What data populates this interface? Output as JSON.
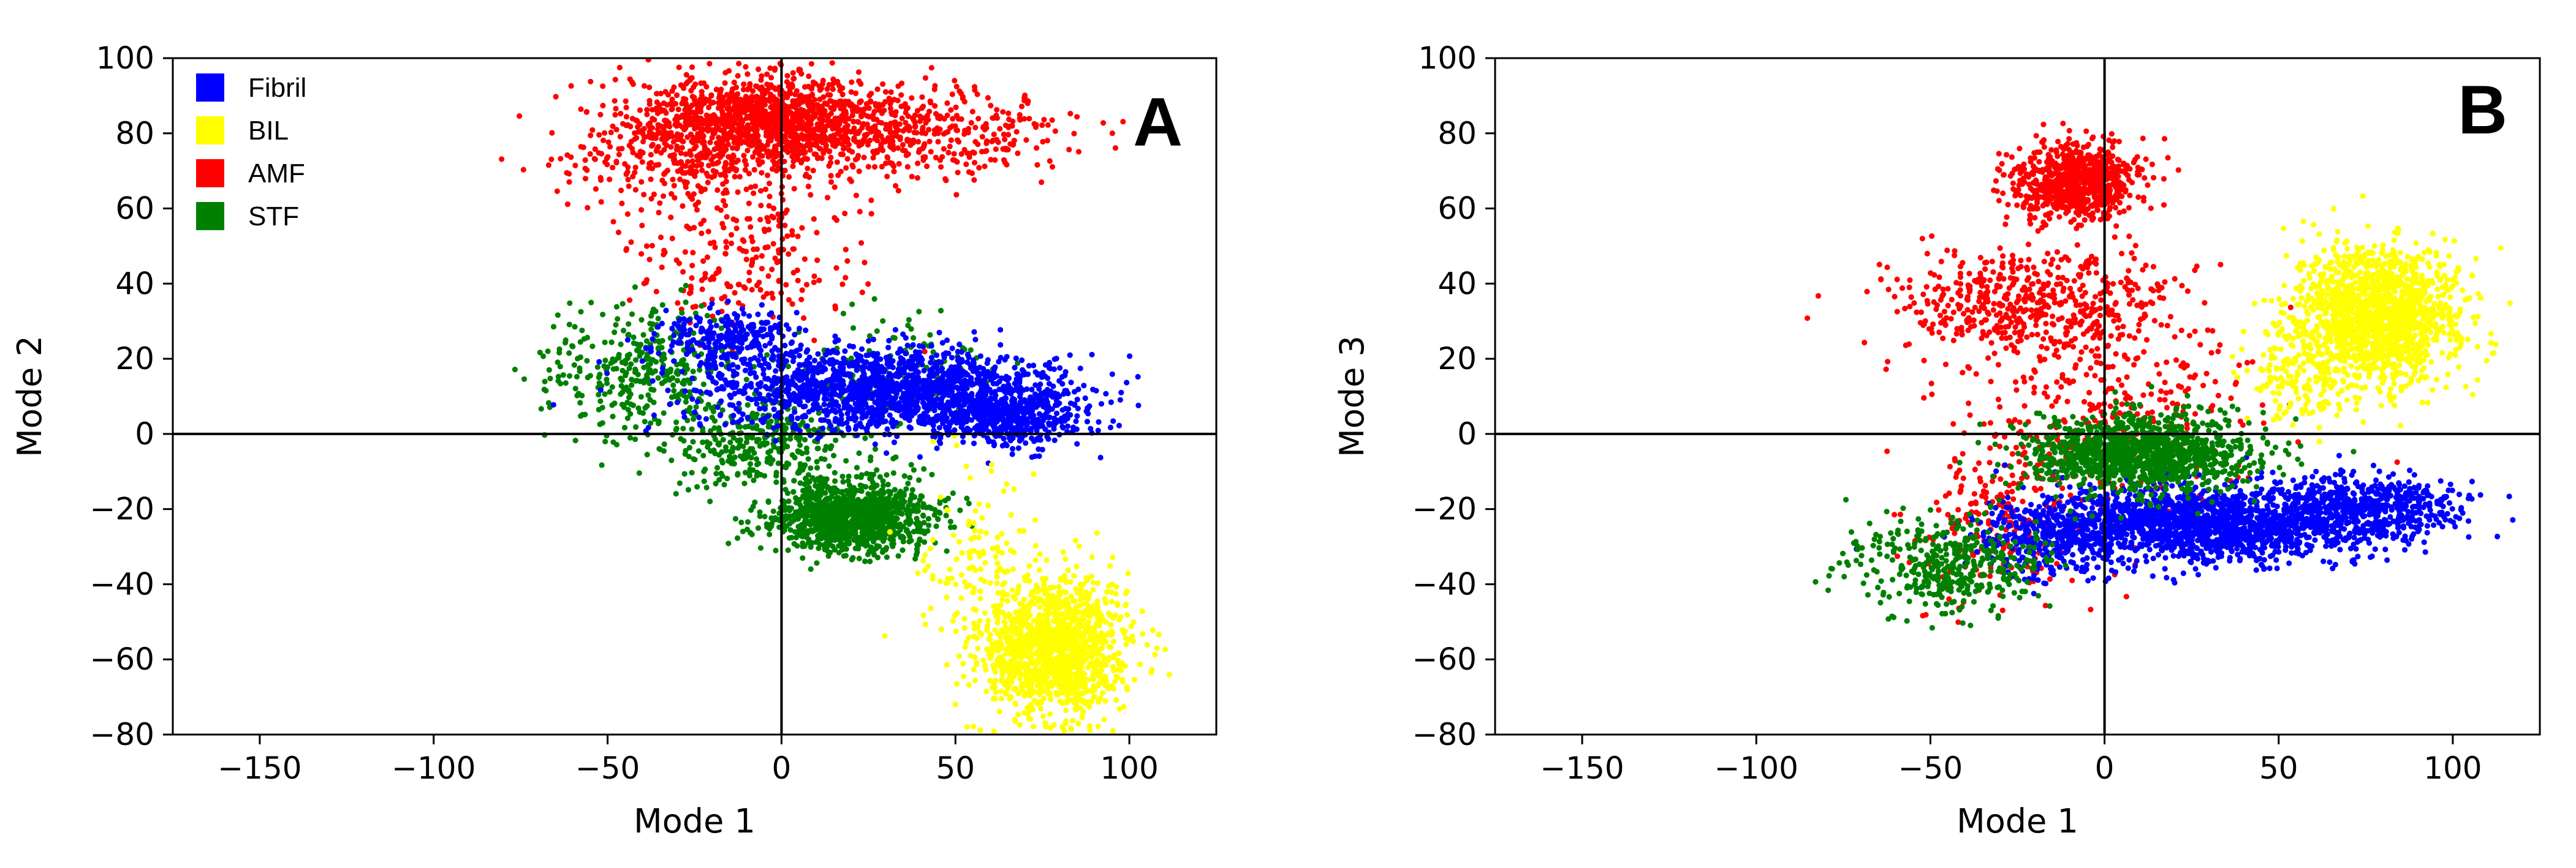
{
  "colors": {
    "Fibril": "#0000ff",
    "BIL": "#ffff00",
    "AMF": "#ff0000",
    "STF": "#008000"
  },
  "legend": [
    {
      "name": "Fibril",
      "color": "#0000ff"
    },
    {
      "name": "BIL",
      "color": "#ffff00"
    },
    {
      "name": "AMF",
      "color": "#ff0000"
    },
    {
      "name": "STF",
      "color": "#008000"
    }
  ],
  "chart_data": [
    {
      "type": "scatter",
      "panel": "A",
      "xlabel": "Mode 1",
      "ylabel": "Mode 2",
      "xlim": [
        -175,
        125
      ],
      "ylim": [
        -80,
        100
      ],
      "xticks": [
        -150,
        -100,
        -50,
        0,
        50,
        100
      ],
      "yticks": [
        -80,
        -60,
        -40,
        -20,
        0,
        20,
        40,
        60,
        80,
        100
      ],
      "xtick_labels": [
        "−150",
        "−100",
        "−50",
        "0",
        "50",
        "100"
      ],
      "ytick_labels": [
        "−80",
        "−60",
        "−40",
        "−20",
        "0",
        "20",
        "40",
        "60",
        "80",
        "100"
      ],
      "grid": false,
      "zero_lines": true,
      "legend_position": "top-left",
      "series": [
        {
          "name": "AMF",
          "clusters": [
            {
              "cx": -5,
              "cy": 84,
              "sx": 16,
              "sy": 6,
              "n": 1100
            },
            {
              "cx": 35,
              "cy": 80,
              "sx": 25,
              "sy": 6,
              "n": 500
            },
            {
              "cx": -35,
              "cy": 76,
              "sx": 14,
              "sy": 8,
              "n": 300
            },
            {
              "cx": -10,
              "cy": 50,
              "sx": 18,
              "sy": 12,
              "n": 260
            }
          ]
        },
        {
          "name": "STF",
          "clusters": [
            {
              "cx": 20,
              "cy": -22,
              "sx": 11,
              "sy": 4.5,
              "n": 1200
            },
            {
              "cx": -5,
              "cy": -3,
              "sx": 16,
              "sy": 6,
              "n": 350
            },
            {
              "cx": -40,
              "cy": 18,
              "sx": 14,
              "sy": 8,
              "n": 350
            },
            {
              "cx": 30,
              "cy": 18,
              "sx": 15,
              "sy": 8,
              "n": 120
            }
          ]
        },
        {
          "name": "Fibril",
          "clusters": [
            {
              "cx": 30,
              "cy": 12,
              "sx": 25,
              "sy": 5.5,
              "n": 1500
            },
            {
              "cx": 65,
              "cy": 5,
              "sx": 12,
              "sy": 4,
              "n": 500
            },
            {
              "cx": -15,
              "cy": 26,
              "sx": 10,
              "sy": 3.5,
              "n": 250
            }
          ]
        },
        {
          "name": "BIL",
          "clusters": [
            {
              "cx": 78,
              "cy": -57,
              "sx": 10,
              "sy": 9,
              "n": 1400
            },
            {
              "cx": 55,
              "cy": -35,
              "sx": 8,
              "sy": 12,
              "n": 120
            }
          ]
        }
      ]
    },
    {
      "type": "scatter",
      "panel": "B",
      "xlabel": "Mode 1",
      "ylabel": "Mode 3",
      "xlim": [
        -175,
        125
      ],
      "ylim": [
        -80,
        100
      ],
      "xticks": [
        -150,
        -100,
        -50,
        0,
        50,
        100
      ],
      "yticks": [
        -80,
        -60,
        -40,
        -20,
        0,
        20,
        40,
        60,
        80,
        100
      ],
      "xtick_labels": [
        "−150",
        "−100",
        "−50",
        "0",
        "50",
        "100"
      ],
      "ytick_labels": [
        "−80",
        "−60",
        "−40",
        "−20",
        "0",
        "20",
        "40",
        "60",
        "80",
        "100"
      ],
      "grid": false,
      "zero_lines": true,
      "series": [
        {
          "name": "AMF",
          "clusters": [
            {
              "cx": -8,
              "cy": 67,
              "sx": 9,
              "sy": 5,
              "n": 800
            },
            {
              "cx": -20,
              "cy": 35,
              "sx": 20,
              "sy": 7,
              "n": 500
            },
            {
              "cx": 0,
              "cy": 5,
              "sx": 22,
              "sy": 15,
              "n": 400
            },
            {
              "cx": -30,
              "cy": -25,
              "sx": 12,
              "sy": 10,
              "n": 200
            }
          ]
        },
        {
          "name": "BIL",
          "clusters": [
            {
              "cx": 78,
              "cy": 32,
              "sx": 12,
              "sy": 9,
              "n": 1500
            },
            {
              "cx": 55,
              "cy": 15,
              "sx": 8,
              "sy": 6,
              "n": 150
            }
          ]
        },
        {
          "name": "Fibril",
          "clusters": [
            {
              "cx": 30,
              "cy": -24,
              "sx": 25,
              "sy": 5,
              "n": 1700
            },
            {
              "cx": 75,
              "cy": -20,
              "sx": 12,
              "sy": 4,
              "n": 500
            },
            {
              "cx": -15,
              "cy": -28,
              "sx": 10,
              "sy": 5,
              "n": 300
            }
          ]
        },
        {
          "name": "STF",
          "clusters": [
            {
              "cx": 10,
              "cy": -5,
              "sx": 16,
              "sy": 5,
              "n": 1200
            },
            {
              "cx": -45,
              "cy": -35,
              "sx": 14,
              "sy": 6,
              "n": 400
            }
          ]
        }
      ]
    }
  ]
}
